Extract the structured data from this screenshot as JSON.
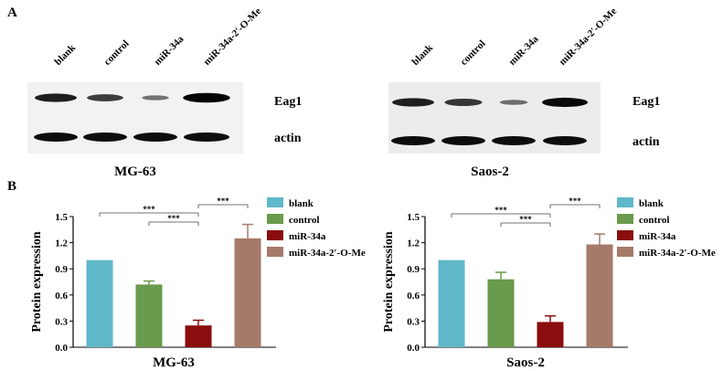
{
  "panel_a": {
    "letter": "A",
    "blots": [
      {
        "cell_line": "MG-63",
        "lanes": [
          "blank",
          "control",
          "miR-34a",
          "miR-34a-2′-O-Me"
        ],
        "bands": [
          "Eag1",
          "actin"
        ],
        "eag1_intensity": [
          1.0,
          0.72,
          0.25,
          1.25
        ]
      },
      {
        "cell_line": "Saos-2",
        "lanes": [
          "blank",
          "control",
          "miR-34a",
          "miR-34a-2′-O-Me"
        ],
        "bands": [
          "Eag1",
          "actin"
        ],
        "eag1_intensity": [
          1.0,
          0.78,
          0.29,
          1.18
        ]
      }
    ]
  },
  "panel_b": {
    "letter": "B"
  },
  "chart_data": [
    {
      "type": "bar",
      "categories": [
        "blank",
        "control",
        "miR-34a",
        "miR-34a-2′-O-Me"
      ],
      "values": [
        1.0,
        0.72,
        0.25,
        1.25
      ],
      "errors": [
        0,
        0.04,
        0.06,
        0.16
      ],
      "colors": [
        "#5fb8c8",
        "#6a9a4c",
        "#8b0d0d",
        "#a67a6a"
      ],
      "xlabel": "MG-63",
      "ylabel": "Protein expression",
      "ylim": [
        0,
        1.5
      ],
      "yticks": [
        "0.0",
        "0.3",
        "0.6",
        "0.9",
        "1.2",
        "1.5"
      ],
      "grid": false,
      "legend": "top-right",
      "significance": [
        {
          "from": 0,
          "to": 2,
          "label": "***"
        },
        {
          "from": 1,
          "to": 2,
          "label": "***"
        },
        {
          "from": 2,
          "to": 3,
          "label": "***"
        }
      ]
    },
    {
      "type": "bar",
      "categories": [
        "blank",
        "control",
        "miR-34a",
        "miR-34a-2′-O-Me"
      ],
      "values": [
        1.0,
        0.78,
        0.29,
        1.18
      ],
      "errors": [
        0,
        0.08,
        0.07,
        0.12
      ],
      "colors": [
        "#5fb8c8",
        "#6a9a4c",
        "#8b0d0d",
        "#a67a6a"
      ],
      "xlabel": "Saos-2",
      "ylabel": "Protein expression",
      "ylim": [
        0,
        1.5
      ],
      "yticks": [
        "0.0",
        "0.3",
        "0.6",
        "0.9",
        "1.2",
        "1.5"
      ],
      "grid": false,
      "legend": "top-right",
      "significance": [
        {
          "from": 0,
          "to": 2,
          "label": "***"
        },
        {
          "from": 1,
          "to": 2,
          "label": "***"
        },
        {
          "from": 2,
          "to": 3,
          "label": "***"
        }
      ]
    }
  ]
}
